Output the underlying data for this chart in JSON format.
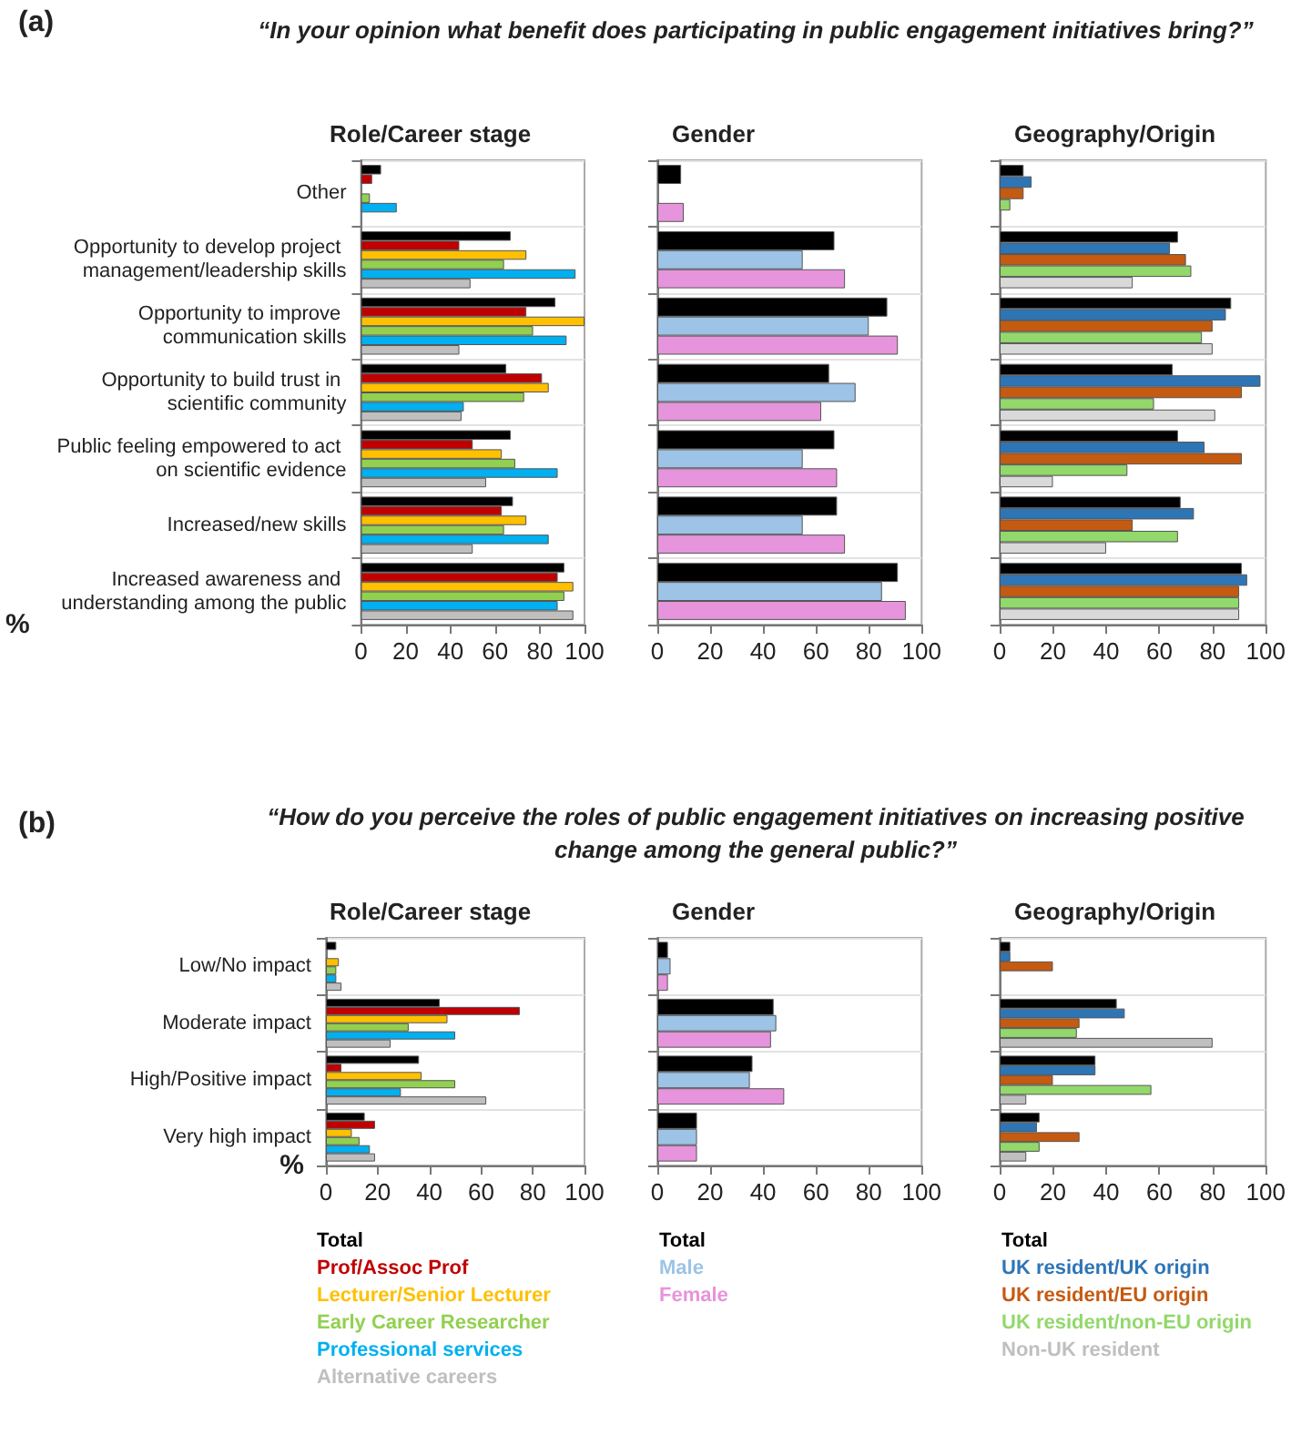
{
  "chart_data": [
    {
      "type": "bar",
      "orientation": "horizontal",
      "title": "Role/Career stage",
      "xlabel": "%",
      "annotations": [
        "(a)",
        "“In your opinion what benefit does participating in public engagement initiatives bring?”"
      ],
      "categories": [
        "Other",
        "Opportunity to develop project management/leadership skills",
        "Opportunity to improve communication skills",
        "Opportunity to build trust in scientific community",
        "Public feeling empowered to act on scientific evidence",
        "Increased/new skills",
        "Increased awareness and understanding among the public"
      ],
      "xlim": [
        0,
        100
      ],
      "xticks": [
        0,
        20,
        40,
        60,
        80,
        100
      ],
      "grid": "y",
      "series": [
        {
          "color": "#000000",
          "values": [
            9,
            67,
            87,
            65,
            67,
            68,
            91
          ]
        },
        {
          "color": "#c00000",
          "values": [
            5,
            44,
            74,
            81,
            50,
            63,
            88
          ]
        },
        {
          "color": "#ffc000",
          "values": [
            null,
            74,
            100,
            84,
            63,
            74,
            95
          ]
        },
        {
          "color": "#92d050",
          "values": [
            4,
            64,
            77,
            73,
            69,
            64,
            91
          ]
        },
        {
          "color": "#00b0f0",
          "values": [
            16,
            96,
            92,
            46,
            88,
            84,
            88
          ]
        },
        {
          "color": "#bfbfbf",
          "values": [
            null,
            49,
            44,
            45,
            56,
            50,
            95
          ]
        }
      ]
    },
    {
      "type": "bar",
      "orientation": "horizontal",
      "title": "Gender",
      "tick_labels": "x",
      "categories": [
        "Other",
        "Opportunity to develop project management/leadership skills",
        "Opportunity to improve communication skills",
        "Opportunity to build trust in scientific community",
        "Public feeling empowered to act on scientific evidence",
        "Increased/new skills",
        "Increased awareness and understanding among the public"
      ],
      "xlim": [
        0,
        100
      ],
      "xticks": [
        0,
        20,
        40,
        60,
        80,
        100
      ],
      "grid": "y",
      "series": [
        {
          "color": "#000000",
          "values": [
            9,
            67,
            87,
            65,
            67,
            68,
            91
          ]
        },
        {
          "color": "#9dc3e6",
          "values": [
            null,
            55,
            80,
            75,
            55,
            55,
            85
          ]
        },
        {
          "color": "#e694dc",
          "values": [
            10,
            71,
            91,
            62,
            68,
            71,
            94
          ]
        }
      ]
    },
    {
      "type": "bar",
      "orientation": "horizontal",
      "title": "Geography/Origin",
      "tick_labels": "x",
      "categories": [
        "Other",
        "Opportunity to develop project management/leadership skills",
        "Opportunity to improve communication skills",
        "Opportunity to build trust in scientific community",
        "Public feeling empowered to act on scientific evidence",
        "Increased/new skills",
        "Increased awareness and understanding among the public"
      ],
      "xlim": [
        0,
        100
      ],
      "xticks": [
        0,
        20,
        40,
        60,
        80,
        100
      ],
      "grid": "y",
      "series": [
        {
          "color": "#000000",
          "values": [
            9,
            67,
            87,
            65,
            67,
            68,
            91
          ]
        },
        {
          "color": "#2e75b6",
          "values": [
            12,
            64,
            85,
            98,
            77,
            73,
            93
          ]
        },
        {
          "color": "#c55a11",
          "values": [
            9,
            70,
            80,
            91,
            91,
            50,
            90
          ]
        },
        {
          "color": "#92d86b",
          "values": [
            4,
            72,
            76,
            58,
            48,
            67,
            90
          ]
        },
        {
          "color": "#d9d9d9",
          "values": [
            null,
            50,
            80,
            81,
            20,
            40,
            90
          ]
        }
      ]
    },
    {
      "type": "bar",
      "orientation": "horizontal",
      "title": "Role/Career stage",
      "xlabel": "%",
      "annotations": [
        "(b)",
        "“How do you perceive the roles of public engagement initiatives on increasing positive change among the general public?”"
      ],
      "categories": [
        "Low/No impact",
        "Moderate impact",
        "High/Positive impact",
        "Very high impact"
      ],
      "xlim": [
        0,
        100
      ],
      "xticks": [
        0,
        20,
        40,
        60,
        80,
        100
      ],
      "grid": "y",
      "legend": "bottom",
      "series": [
        {
          "name": "Total",
          "color": "#000000",
          "values": [
            4,
            44,
            36,
            15
          ]
        },
        {
          "name": "Prof/Assoc Prof",
          "color": "#c00000",
          "values": [
            null,
            75,
            6,
            19
          ]
        },
        {
          "name": "Lecturer/Senior Lecturer",
          "color": "#ffc000",
          "values": [
            5,
            47,
            37,
            10
          ]
        },
        {
          "name": "Early Career Researcher",
          "color": "#92d050",
          "values": [
            4,
            32,
            50,
            13
          ]
        },
        {
          "name": "Professional services",
          "color": "#00b0f0",
          "values": [
            4,
            50,
            29,
            17
          ]
        },
        {
          "name": "Alternative careers",
          "color": "#bfbfbf",
          "values": [
            6,
            25,
            62,
            19
          ]
        }
      ]
    },
    {
      "type": "bar",
      "orientation": "horizontal",
      "title": "Gender",
      "categories": [
        "Low/No impact",
        "Moderate impact",
        "High/Positive impact",
        "Very high impact"
      ],
      "tick_labels": "x",
      "xlim": [
        0,
        100
      ],
      "xticks": [
        0,
        20,
        40,
        60,
        80,
        100
      ],
      "grid": "y",
      "legend": "bottom",
      "series": [
        {
          "name": "Total",
          "color": "#000000",
          "values": [
            4,
            44,
            36,
            15
          ]
        },
        {
          "name": "Male",
          "color": "#9dc3e6",
          "values": [
            5,
            45,
            35,
            15
          ]
        },
        {
          "name": "Female",
          "color": "#e694dc",
          "values": [
            4,
            43,
            48,
            15
          ]
        }
      ]
    },
    {
      "type": "bar",
      "orientation": "horizontal",
      "title": "Geography/Origin",
      "categories": [
        "Low/No impact",
        "Moderate impact",
        "High/Positive impact",
        "Very high impact"
      ],
      "tick_labels": "x",
      "xlim": [
        0,
        100
      ],
      "xticks": [
        0,
        20,
        40,
        60,
        80,
        100
      ],
      "grid": "y",
      "legend": "bottom",
      "series": [
        {
          "name": "Total",
          "color": "#000000",
          "values": [
            4,
            44,
            36,
            15
          ]
        },
        {
          "name": "UK resident/UK origin",
          "color": "#2e75b6",
          "values": [
            4,
            47,
            36,
            14
          ]
        },
        {
          "name": "UK resident/EU origin",
          "color": "#c55a11",
          "values": [
            20,
            30,
            20,
            30
          ]
        },
        {
          "name": "UK resident/non-EU origin",
          "color": "#92d86b",
          "values": [
            null,
            29,
            57,
            15
          ]
        },
        {
          "name": "Non-UK resident",
          "color": "#bfbfbf",
          "values": [
            null,
            80,
            10,
            10
          ]
        }
      ]
    }
  ]
}
